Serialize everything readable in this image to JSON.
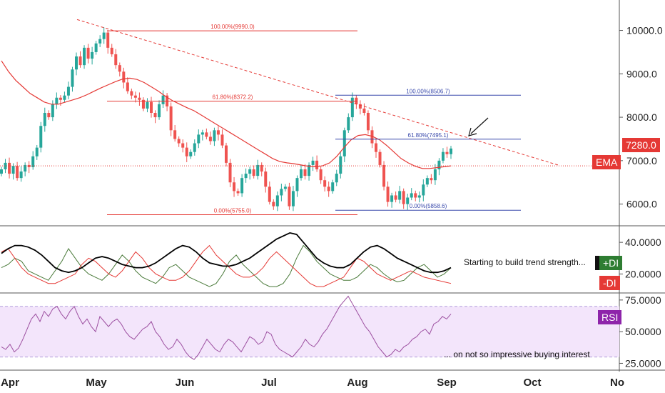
{
  "chart_data": {
    "type": "candlestick",
    "instrument_colors": {
      "up": "#26a69a",
      "down": "#ef5350",
      "ema": "#e53935",
      "fib_red": "#e53935",
      "fib_blue": "#3949ab",
      "plus_di": "#4a7a3a",
      "minus_di": "#e53935",
      "adx": "#000000",
      "rsi": "#9c4fa0",
      "rsi_band": "#f3e5fb"
    },
    "x_axis": {
      "tick_labels": [
        "Apr",
        "May",
        "Jun",
        "Jul",
        "Aug",
        "Sep",
        "Oct",
        "No"
      ]
    },
    "price_panel": {
      "y_ticks": [
        "10000.0",
        "9000.0",
        "8000.0",
        "7000.0",
        "6000.0"
      ],
      "ylim": [
        5500,
        10700
      ],
      "last_price_label": "7280.0",
      "last_price": 7280,
      "ema_label": "EMA",
      "ema_level": 6880,
      "candles_close": [
        6800,
        6950,
        6700,
        6880,
        6600,
        6750,
        6900,
        6850,
        7100,
        7300,
        7800,
        8100,
        8000,
        8300,
        8450,
        8400,
        8500,
        8700,
        9100,
        9400,
        9200,
        9600,
        9350,
        9500,
        9700,
        9800,
        9950,
        9600,
        9450,
        9200,
        9050,
        8800,
        8600,
        8500,
        8450,
        8400,
        8200,
        8350,
        8100,
        8000,
        8300,
        8500,
        8250,
        7700,
        7500,
        7400,
        7300,
        7100,
        7200,
        7400,
        7600,
        7650,
        7550,
        7450,
        7700,
        7600,
        7350,
        6950,
        6500,
        6300,
        6250,
        6600,
        6700,
        6800,
        6650,
        6900,
        6750,
        6400,
        6050,
        5950,
        6200,
        6350,
        6400,
        5950,
        6300,
        6600,
        6800,
        6650,
        6900,
        7000,
        6800,
        6550,
        6400,
        6300,
        6500,
        6700,
        7100,
        7700,
        8000,
        8450,
        8300,
        8200,
        8100,
        7700,
        7400,
        7200,
        6900,
        6400,
        6050,
        6200,
        6100,
        6300,
        6000,
        6150,
        6250,
        6150,
        6200,
        6450,
        6600,
        6550,
        6800,
        7000,
        7200,
        7150,
        7280
      ],
      "ema_values": [
        9300,
        9050,
        8850,
        8700,
        8550,
        8450,
        8350,
        8300,
        8300,
        8350,
        8400,
        8450,
        8520,
        8600,
        8680,
        8750,
        8820,
        8880,
        8900,
        8870,
        8800,
        8700,
        8600,
        8480,
        8380,
        8300,
        8220,
        8150,
        8050,
        7950,
        7850,
        7750,
        7650,
        7550,
        7450,
        7350,
        7250,
        7150,
        7050,
        6980,
        6950,
        6930,
        6900,
        6870,
        6860,
        6880,
        6950,
        7100,
        7300,
        7480,
        7580,
        7600,
        7560,
        7480,
        7350,
        7200,
        7050,
        6950,
        6870,
        6820,
        6820,
        6840,
        6860,
        6880
      ],
      "trendline": {
        "from_price": 10250,
        "to_price": 6900
      },
      "fib_red": [
        {
          "label": "100.00%(9990.0)",
          "price": 9990
        },
        {
          "label": "61.80%(8372.2)",
          "price": 8372.2
        },
        {
          "label": "0.00%(5755.0)",
          "price": 5755
        }
      ],
      "fib_blue": [
        {
          "label": "100.00%(8506.7)",
          "price": 8506.7
        },
        {
          "label": "61.80%(7495.1)",
          "price": 7495.1
        },
        {
          "label": "0.00%(5858.6)",
          "price": 5858.6
        }
      ]
    },
    "dmi_panel": {
      "y_ticks": [
        "40.0000",
        "20.0000"
      ],
      "ylim": [
        8,
        50
      ],
      "plus_di_label": "+DI",
      "minus_di_label": "-DI",
      "annotation": "Starting to build trend strength...",
      "adx": [
        33,
        36,
        38,
        38,
        37,
        35,
        32,
        28,
        24,
        22,
        21,
        22,
        24,
        27,
        30,
        31,
        30,
        28,
        26,
        25,
        24,
        24,
        25,
        27,
        30,
        33,
        36,
        38,
        37,
        34,
        30,
        27,
        26,
        25,
        25,
        26,
        28,
        30,
        33,
        36,
        39,
        42,
        44,
        46,
        45,
        40,
        35,
        30,
        27,
        25,
        24,
        24,
        26,
        30,
        34,
        37,
        38,
        36,
        33,
        30,
        28,
        26,
        24,
        22,
        21,
        21,
        22,
        24
      ],
      "plus_di": [
        24,
        26,
        30,
        28,
        22,
        20,
        18,
        16,
        22,
        28,
        36,
        30,
        24,
        20,
        18,
        16,
        20,
        26,
        32,
        28,
        22,
        18,
        16,
        14,
        18,
        24,
        26,
        22,
        18,
        16,
        14,
        12,
        14,
        20,
        28,
        32,
        26,
        22,
        18,
        14,
        12,
        12,
        14,
        20,
        30,
        38,
        34,
        28,
        24,
        20,
        18,
        16,
        16,
        18,
        22,
        26,
        24,
        20,
        17,
        15,
        16,
        20,
        24,
        26,
        22,
        18,
        20,
        24
      ],
      "minus_di": [
        34,
        36,
        30,
        24,
        20,
        18,
        16,
        14,
        14,
        16,
        18,
        20,
        26,
        30,
        28,
        24,
        20,
        18,
        22,
        28,
        34,
        30,
        24,
        20,
        18,
        16,
        16,
        18,
        22,
        28,
        34,
        38,
        32,
        28,
        24,
        20,
        18,
        18,
        20,
        24,
        30,
        34,
        30,
        26,
        22,
        18,
        14,
        12,
        12,
        14,
        16,
        18,
        24,
        30,
        28,
        24,
        20,
        18,
        16,
        18,
        20,
        22,
        20,
        18,
        17,
        16,
        15,
        14
      ]
    },
    "rsi_panel": {
      "y_ticks": [
        "75.0000",
        "50.0000",
        "25.0000"
      ],
      "ylim": [
        23,
        80
      ],
      "band": [
        30,
        70
      ],
      "label": "RSI",
      "annotation": "... on not so impressive buying interest",
      "values": [
        38,
        36,
        40,
        34,
        37,
        44,
        52,
        60,
        64,
        58,
        66,
        62,
        68,
        70,
        64,
        60,
        66,
        70,
        62,
        56,
        60,
        54,
        50,
        62,
        58,
        54,
        58,
        60,
        56,
        50,
        46,
        44,
        48,
        52,
        54,
        58,
        50,
        46,
        40,
        36,
        38,
        44,
        40,
        34,
        30,
        28,
        32,
        38,
        44,
        40,
        36,
        34,
        40,
        44,
        42,
        38,
        34,
        40,
        46,
        44,
        40,
        42,
        50,
        48,
        40,
        36,
        34,
        32,
        30,
        34,
        38,
        44,
        40,
        38,
        42,
        48,
        52,
        58,
        64,
        70,
        74,
        78,
        72,
        66,
        60,
        54,
        50,
        44,
        38,
        34,
        30,
        32,
        36,
        34,
        38,
        40,
        44,
        46,
        50,
        52,
        48,
        56,
        58,
        62,
        60,
        64
      ]
    }
  }
}
